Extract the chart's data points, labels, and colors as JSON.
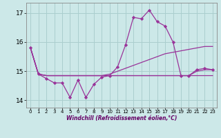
{
  "xlabel": "Windchill (Refroidissement éolien,°C)",
  "x": [
    0,
    1,
    2,
    3,
    4,
    5,
    6,
    7,
    8,
    9,
    10,
    11,
    12,
    13,
    14,
    15,
    16,
    17,
    18,
    19,
    20,
    21,
    22,
    23
  ],
  "line1": [
    15.8,
    14.9,
    14.75,
    14.6,
    14.6,
    14.1,
    14.7,
    14.1,
    14.55,
    14.8,
    14.85,
    15.15,
    15.9,
    16.85,
    16.8,
    17.1,
    16.7,
    16.55,
    16.0,
    14.85,
    14.85,
    15.05,
    15.1,
    15.05
  ],
  "line2": [
    15.8,
    14.9,
    14.85,
    14.85,
    14.85,
    14.85,
    14.85,
    14.85,
    14.85,
    14.85,
    14.9,
    15.0,
    15.1,
    15.2,
    15.3,
    15.4,
    15.5,
    15.6,
    15.65,
    15.7,
    15.75,
    15.8,
    15.85,
    15.85
  ],
  "line3": [
    15.8,
    14.9,
    14.85,
    14.85,
    14.85,
    14.85,
    14.85,
    14.85,
    14.85,
    14.85,
    14.85,
    14.85,
    14.85,
    14.85,
    14.85,
    14.85,
    14.85,
    14.85,
    14.85,
    14.85,
    14.85,
    15.0,
    15.05,
    15.05
  ],
  "line4": [
    15.8,
    14.9,
    14.85,
    14.85,
    14.85,
    14.85,
    14.85,
    14.85,
    14.85,
    14.85,
    14.85,
    14.85,
    14.85,
    14.85,
    14.85,
    14.85,
    14.85,
    14.85,
    14.85,
    14.85,
    14.85,
    14.85,
    14.85,
    14.85
  ],
  "line_color": "#993399",
  "bg_color": "#cce8e8",
  "grid_color": "#aacece",
  "ylim": [
    13.75,
    17.35
  ],
  "xlim": [
    -0.5,
    23.5
  ],
  "yticks": [
    14,
    15,
    16,
    17
  ],
  "xticks": [
    0,
    1,
    2,
    3,
    4,
    5,
    6,
    7,
    8,
    9,
    10,
    11,
    12,
    13,
    14,
    15,
    16,
    17,
    18,
    19,
    20,
    21,
    22,
    23
  ],
  "marker": "D",
  "markersize": 2.2,
  "linewidth": 0.9
}
